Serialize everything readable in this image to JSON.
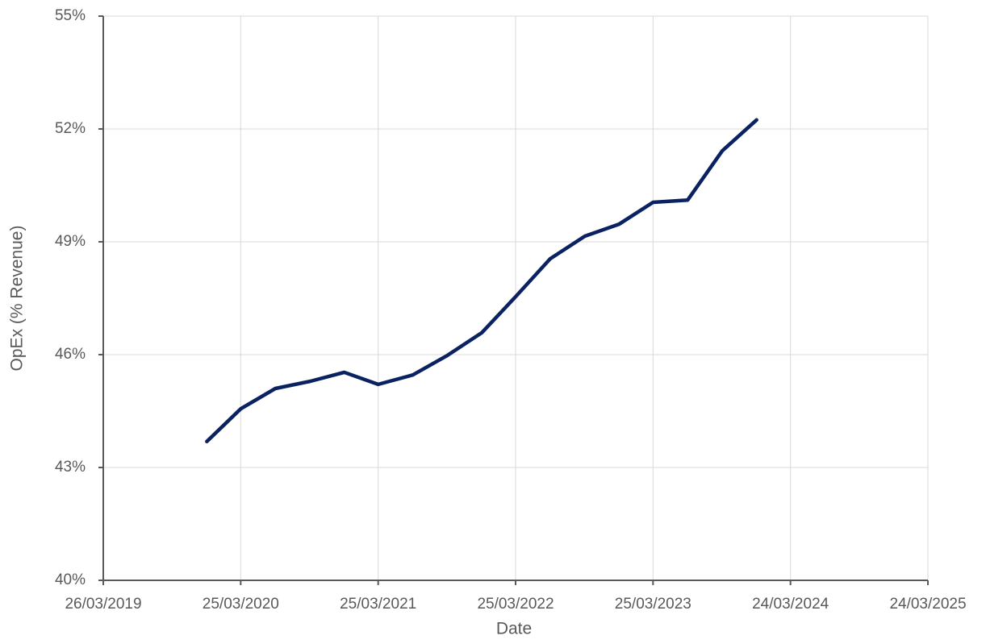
{
  "chart_data": {
    "type": "line",
    "x_label": "Date",
    "y_label": "OpEx (% Revenue)",
    "x": [
      "2019-12-26",
      "2020-03-25",
      "2020-06-25",
      "2020-09-25",
      "2020-12-25",
      "2021-03-25",
      "2021-06-25",
      "2021-09-25",
      "2021-12-25",
      "2022-03-25",
      "2022-06-25",
      "2022-09-25",
      "2022-12-25",
      "2023-03-25",
      "2023-06-25",
      "2023-09-25",
      "2023-12-25"
    ],
    "series": [
      {
        "name": "OpEx (% Revenue)",
        "color": "#0b2262",
        "values": [
          43.69,
          44.56,
          45.1,
          45.29,
          45.53,
          45.21,
          45.46,
          45.98,
          46.58,
          47.54,
          48.55,
          49.15,
          49.47,
          50.05,
          50.11,
          51.42,
          52.24
        ]
      }
    ],
    "xlim": [
      "2019-03-26",
      "2025-03-24"
    ],
    "xticks": [
      {
        "value": "2019-03-26",
        "label": "26/03/2019"
      },
      {
        "value": "2020-03-25",
        "label": "25/03/2020"
      },
      {
        "value": "2021-03-25",
        "label": "25/03/2021"
      },
      {
        "value": "2022-03-25",
        "label": "25/03/2022"
      },
      {
        "value": "2023-03-25",
        "label": "25/03/2023"
      },
      {
        "value": "2024-03-24",
        "label": "24/03/2024"
      },
      {
        "value": "2025-03-24",
        "label": "24/03/2025"
      }
    ],
    "ylim": [
      40,
      55
    ],
    "yticks": [
      {
        "value": 40,
        "label": "40%"
      },
      {
        "value": 43,
        "label": "43%"
      },
      {
        "value": 46,
        "label": "46%"
      },
      {
        "value": 49,
        "label": "49%"
      },
      {
        "value": 52,
        "label": "52%"
      },
      {
        "value": 55,
        "label": "55%"
      }
    ],
    "grid": true
  }
}
